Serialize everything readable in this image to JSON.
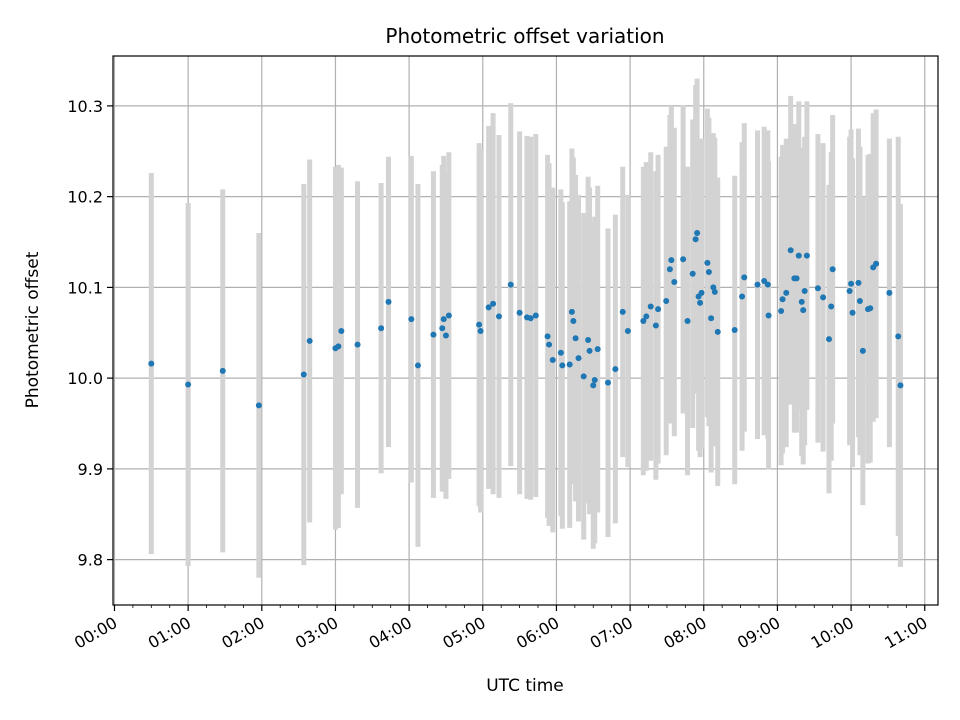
{
  "chart_data": {
    "type": "scatter",
    "title": "Photometric offset variation",
    "xlabel": "UTC time",
    "ylabel": "Photometric offset",
    "x_unit": "hours",
    "xlim": [
      -0.02,
      11.18
    ],
    "ylim": [
      9.75,
      10.355
    ],
    "x_ticks": [
      {
        "value": 0,
        "label": "00:00"
      },
      {
        "value": 1,
        "label": "01:00"
      },
      {
        "value": 2,
        "label": "02:00"
      },
      {
        "value": 3,
        "label": "03:00"
      },
      {
        "value": 4,
        "label": "04:00"
      },
      {
        "value": 5,
        "label": "05:00"
      },
      {
        "value": 6,
        "label": "06:00"
      },
      {
        "value": 7,
        "label": "07:00"
      },
      {
        "value": 8,
        "label": "08:00"
      },
      {
        "value": 9,
        "label": "09:00"
      },
      {
        "value": 10,
        "label": "10:00"
      },
      {
        "value": 11,
        "label": "11:00"
      }
    ],
    "y_ticks": [
      {
        "value": 9.8,
        "label": "9.8"
      },
      {
        "value": 9.9,
        "label": "9.9"
      },
      {
        "value": 10.0,
        "label": "10.0"
      },
      {
        "value": 10.1,
        "label": "10.1"
      },
      {
        "value": 10.2,
        "label": "10.2"
      },
      {
        "value": 10.3,
        "label": "10.3"
      }
    ],
    "grid": true,
    "point_color": "#1f77b4",
    "errorbar_color": "#d3d3d3",
    "points": [
      {
        "x": 0.5,
        "y": 10.016,
        "err": 0.21
      },
      {
        "x": 1.0,
        "y": 9.993,
        "err": 0.2
      },
      {
        "x": 1.47,
        "y": 10.008,
        "err": 0.2
      },
      {
        "x": 1.96,
        "y": 9.97,
        "err": 0.19
      },
      {
        "x": 2.57,
        "y": 10.004,
        "err": 0.21
      },
      {
        "x": 2.65,
        "y": 10.041,
        "err": 0.2
      },
      {
        "x": 3.0,
        "y": 10.033,
        "err": 0.2
      },
      {
        "x": 3.04,
        "y": 10.035,
        "err": 0.2
      },
      {
        "x": 3.08,
        "y": 10.052,
        "err": 0.18
      },
      {
        "x": 3.3,
        "y": 10.037,
        "err": 0.18
      },
      {
        "x": 3.62,
        "y": 10.055,
        "err": 0.16
      },
      {
        "x": 3.72,
        "y": 10.084,
        "err": 0.16
      },
      {
        "x": 4.03,
        "y": 10.065,
        "err": 0.18
      },
      {
        "x": 4.12,
        "y": 10.014,
        "err": 0.2
      },
      {
        "x": 4.33,
        "y": 10.048,
        "err": 0.18
      },
      {
        "x": 4.45,
        "y": 10.055,
        "err": 0.18
      },
      {
        "x": 4.47,
        "y": 10.065,
        "err": 0.18
      },
      {
        "x": 4.5,
        "y": 10.047,
        "err": 0.18
      },
      {
        "x": 4.54,
        "y": 10.069,
        "err": 0.18
      },
      {
        "x": 4.95,
        "y": 10.059,
        "err": 0.2
      },
      {
        "x": 4.97,
        "y": 10.052,
        "err": 0.2
      },
      {
        "x": 5.08,
        "y": 10.078,
        "err": 0.2
      },
      {
        "x": 5.14,
        "y": 10.082,
        "err": 0.21
      },
      {
        "x": 5.22,
        "y": 10.068,
        "err": 0.2
      },
      {
        "x": 5.38,
        "y": 10.103,
        "err": 0.2
      },
      {
        "x": 5.5,
        "y": 10.072,
        "err": 0.2
      },
      {
        "x": 5.6,
        "y": 10.067,
        "err": 0.2
      },
      {
        "x": 5.65,
        "y": 10.066,
        "err": 0.2
      },
      {
        "x": 5.72,
        "y": 10.069,
        "err": 0.2
      },
      {
        "x": 5.88,
        "y": 10.046,
        "err": 0.2
      },
      {
        "x": 5.9,
        "y": 10.037,
        "err": 0.2
      },
      {
        "x": 5.95,
        "y": 10.02,
        "err": 0.19
      },
      {
        "x": 6.06,
        "y": 10.028,
        "err": 0.18
      },
      {
        "x": 6.08,
        "y": 10.014,
        "err": 0.18
      },
      {
        "x": 6.18,
        "y": 10.015,
        "err": 0.18
      },
      {
        "x": 6.21,
        "y": 10.073,
        "err": 0.18
      },
      {
        "x": 6.23,
        "y": 10.063,
        "err": 0.18
      },
      {
        "x": 6.26,
        "y": 10.044,
        "err": 0.18
      },
      {
        "x": 6.3,
        "y": 10.022,
        "err": 0.18
      },
      {
        "x": 6.37,
        "y": 10.002,
        "err": 0.18
      },
      {
        "x": 6.43,
        "y": 10.042,
        "err": 0.18
      },
      {
        "x": 6.45,
        "y": 10.03,
        "err": 0.18
      },
      {
        "x": 6.5,
        "y": 9.992,
        "err": 0.18
      },
      {
        "x": 6.52,
        "y": 9.998,
        "err": 0.18
      },
      {
        "x": 6.56,
        "y": 10.032,
        "err": 0.18
      },
      {
        "x": 6.7,
        "y": 9.995,
        "err": 0.17
      },
      {
        "x": 6.8,
        "y": 10.01,
        "err": 0.17
      },
      {
        "x": 6.9,
        "y": 10.073,
        "err": 0.16
      },
      {
        "x": 6.97,
        "y": 10.052,
        "err": 0.15
      },
      {
        "x": 7.18,
        "y": 10.063,
        "err": 0.17
      },
      {
        "x": 7.22,
        "y": 10.068,
        "err": 0.17
      },
      {
        "x": 7.28,
        "y": 10.079,
        "err": 0.17
      },
      {
        "x": 7.35,
        "y": 10.058,
        "err": 0.17
      },
      {
        "x": 7.38,
        "y": 10.076,
        "err": 0.17
      },
      {
        "x": 7.49,
        "y": 10.085,
        "err": 0.17
      },
      {
        "x": 7.54,
        "y": 10.12,
        "err": 0.17
      },
      {
        "x": 7.56,
        "y": 10.13,
        "err": 0.17
      },
      {
        "x": 7.6,
        "y": 10.106,
        "err": 0.17
      },
      {
        "x": 7.72,
        "y": 10.131,
        "err": 0.17
      },
      {
        "x": 7.78,
        "y": 10.063,
        "err": 0.17
      },
      {
        "x": 7.85,
        "y": 10.115,
        "err": 0.17
      },
      {
        "x": 7.89,
        "y": 10.153,
        "err": 0.17
      },
      {
        "x": 7.91,
        "y": 10.16,
        "err": 0.17
      },
      {
        "x": 7.93,
        "y": 10.09,
        "err": 0.17
      },
      {
        "x": 7.95,
        "y": 10.083,
        "err": 0.17
      },
      {
        "x": 7.97,
        "y": 10.094,
        "err": 0.17
      },
      {
        "x": 8.05,
        "y": 10.127,
        "err": 0.17
      },
      {
        "x": 8.07,
        "y": 10.117,
        "err": 0.17
      },
      {
        "x": 8.1,
        "y": 10.066,
        "err": 0.17
      },
      {
        "x": 8.13,
        "y": 10.1,
        "err": 0.17
      },
      {
        "x": 8.15,
        "y": 10.095,
        "err": 0.17
      },
      {
        "x": 8.19,
        "y": 10.051,
        "err": 0.17
      },
      {
        "x": 8.42,
        "y": 10.053,
        "err": 0.17
      },
      {
        "x": 8.52,
        "y": 10.09,
        "err": 0.17
      },
      {
        "x": 8.55,
        "y": 10.111,
        "err": 0.17
      },
      {
        "x": 8.73,
        "y": 10.103,
        "err": 0.17
      },
      {
        "x": 8.82,
        "y": 10.107,
        "err": 0.17
      },
      {
        "x": 8.87,
        "y": 10.103,
        "err": 0.17
      },
      {
        "x": 8.88,
        "y": 10.069,
        "err": 0.17
      },
      {
        "x": 9.05,
        "y": 10.074,
        "err": 0.17
      },
      {
        "x": 9.07,
        "y": 10.087,
        "err": 0.17
      },
      {
        "x": 9.12,
        "y": 10.094,
        "err": 0.17
      },
      {
        "x": 9.18,
        "y": 10.141,
        "err": 0.17
      },
      {
        "x": 9.23,
        "y": 10.11,
        "err": 0.17
      },
      {
        "x": 9.26,
        "y": 10.11,
        "err": 0.17
      },
      {
        "x": 9.29,
        "y": 10.135,
        "err": 0.17
      },
      {
        "x": 9.33,
        "y": 10.084,
        "err": 0.17
      },
      {
        "x": 9.35,
        "y": 10.075,
        "err": 0.17
      },
      {
        "x": 9.37,
        "y": 10.096,
        "err": 0.17
      },
      {
        "x": 9.4,
        "y": 10.135,
        "err": 0.17
      },
      {
        "x": 9.55,
        "y": 10.099,
        "err": 0.17
      },
      {
        "x": 9.62,
        "y": 10.089,
        "err": 0.17
      },
      {
        "x": 9.7,
        "y": 10.043,
        "err": 0.17
      },
      {
        "x": 9.73,
        "y": 10.079,
        "err": 0.17
      },
      {
        "x": 9.75,
        "y": 10.12,
        "err": 0.17
      },
      {
        "x": 9.98,
        "y": 10.096,
        "err": 0.17
      },
      {
        "x": 10.0,
        "y": 10.104,
        "err": 0.17
      },
      {
        "x": 10.02,
        "y": 10.072,
        "err": 0.17
      },
      {
        "x": 10.1,
        "y": 10.105,
        "err": 0.17
      },
      {
        "x": 10.12,
        "y": 10.085,
        "err": 0.17
      },
      {
        "x": 10.16,
        "y": 10.03,
        "err": 0.17
      },
      {
        "x": 10.23,
        "y": 10.076,
        "err": 0.17
      },
      {
        "x": 10.26,
        "y": 10.077,
        "err": 0.17
      },
      {
        "x": 10.3,
        "y": 10.122,
        "err": 0.17
      },
      {
        "x": 10.34,
        "y": 10.126,
        "err": 0.17
      },
      {
        "x": 10.52,
        "y": 10.094,
        "err": 0.17
      },
      {
        "x": 10.64,
        "y": 10.046,
        "err": 0.22
      },
      {
        "x": 10.67,
        "y": 9.992,
        "err": 0.2
      }
    ]
  }
}
